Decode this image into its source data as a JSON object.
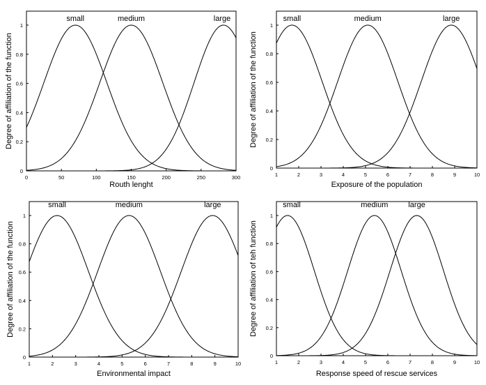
{
  "chart_data": [
    {
      "type": "line",
      "xlabel": "Routh lenght",
      "ylabel": "Degree of affiliation of the function",
      "xlim": [
        0,
        300
      ],
      "ylim": [
        0,
        1
      ],
      "xticks": [
        0,
        50,
        100,
        150,
        200,
        250,
        300
      ],
      "yticks": [
        0,
        0.2,
        0.4,
        0.6,
        0.8,
        1
      ],
      "grid": false,
      "series": [
        {
          "name": "small",
          "mean": 70,
          "sigma": 45
        },
        {
          "name": "medium",
          "mean": 150,
          "sigma": 45
        },
        {
          "name": "large",
          "mean": 282,
          "sigma": 42
        }
      ]
    },
    {
      "type": "line",
      "xlabel": "Exposure of the population",
      "ylabel": "Degree of affiliation of the function",
      "xlim": [
        1,
        10
      ],
      "ylim": [
        0,
        1
      ],
      "xticks": [
        1,
        2,
        3,
        4,
        5,
        6,
        7,
        8,
        9,
        10
      ],
      "yticks": [
        0,
        0.2,
        0.4,
        0.6,
        0.8,
        1
      ],
      "grid": false,
      "series": [
        {
          "name": "small",
          "mean": 1.7,
          "sigma": 1.35
        },
        {
          "name": "medium",
          "mean": 5.1,
          "sigma": 1.35
        },
        {
          "name": "large",
          "mean": 8.85,
          "sigma": 1.35
        }
      ]
    },
    {
      "type": "line",
      "xlabel": "Environmental impact",
      "ylabel": "Degree of affiliation of the function",
      "xlim": [
        1,
        10
      ],
      "ylim": [
        0,
        1
      ],
      "xticks": [
        1,
        2,
        3,
        4,
        5,
        6,
        7,
        8,
        9,
        10
      ],
      "yticks": [
        0,
        0.2,
        0.4,
        0.6,
        0.8,
        1
      ],
      "grid": false,
      "series": [
        {
          "name": "small",
          "mean": 2.2,
          "sigma": 1.35
        },
        {
          "name": "medium",
          "mean": 5.3,
          "sigma": 1.35
        },
        {
          "name": "large",
          "mean": 8.9,
          "sigma": 1.35
        }
      ]
    },
    {
      "type": "line",
      "xlabel": "Response speed of rescue services",
      "ylabel": "Degree of affiliation of teh function",
      "xlim": [
        1,
        10
      ],
      "ylim": [
        0,
        1
      ],
      "xticks": [
        1,
        2,
        3,
        4,
        5,
        6,
        7,
        8,
        9,
        10
      ],
      "yticks": [
        0,
        0.2,
        0.4,
        0.6,
        0.8,
        1
      ],
      "grid": false,
      "series": [
        {
          "name": "small",
          "mean": 1.5,
          "sigma": 1.2
        },
        {
          "name": "medium",
          "mean": 5.4,
          "sigma": 1.2
        },
        {
          "name": "large",
          "mean": 7.3,
          "sigma": 1.2
        }
      ]
    }
  ]
}
